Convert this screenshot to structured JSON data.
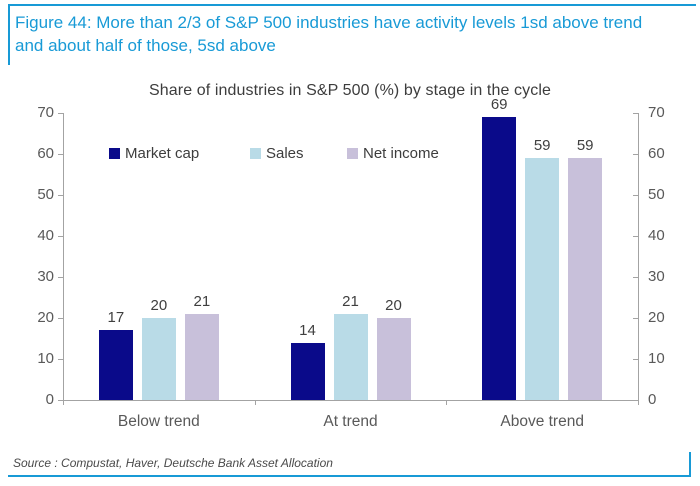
{
  "figure": {
    "caption": "Figure 44: More than 2/3 of S&P 500 industries have activity levels 1sd above trend and about half of those, 5sd above",
    "source": "Source : Compustat, Haver, Deutsche Bank Asset Allocation"
  },
  "colors": {
    "accent_blue": "#189ad6",
    "caption_text": "#189ad6",
    "axis_line": "#a3a3a3",
    "tick_text": "#595959",
    "value_text": "#3f3f3f"
  },
  "chart_data": {
    "type": "bar",
    "title": "Share of industries in S&P 500 (%) by stage in the cycle",
    "categories": [
      "Below trend",
      "At trend",
      "Above trend"
    ],
    "series": [
      {
        "name": "Market cap",
        "color": "#0a0a8a",
        "values": [
          17,
          14,
          69
        ]
      },
      {
        "name": "Sales",
        "color": "#b9dbe7",
        "values": [
          20,
          21,
          59
        ]
      },
      {
        "name": "Net income",
        "color": "#c8c0da",
        "values": [
          21,
          20,
          59
        ]
      }
    ],
    "ylim": [
      0,
      70
    ],
    "ytick_step": 10,
    "yticks": [
      0,
      10,
      20,
      30,
      40,
      50,
      60,
      70
    ],
    "dual_axis": true,
    "grid": false,
    "legend_position": "inside-top-left",
    "data_labels": true
  }
}
